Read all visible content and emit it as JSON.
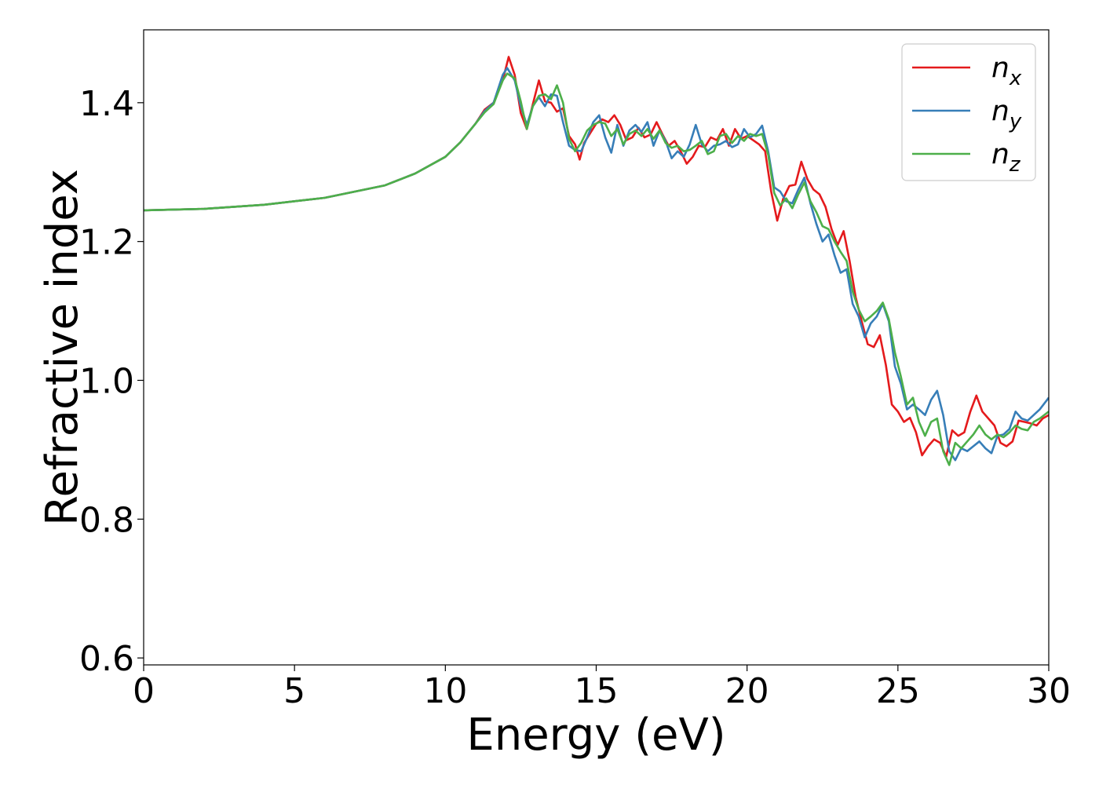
{
  "chart_data": {
    "type": "line",
    "title": "",
    "xlabel": "Energy (eV)",
    "ylabel": "Refractive index",
    "xlim": [
      0,
      30
    ],
    "ylim": [
      0.59,
      1.505
    ],
    "xticks": [
      0,
      5,
      10,
      15,
      20,
      25,
      30
    ],
    "xtick_labels": [
      "0",
      "5",
      "10",
      "15",
      "20",
      "25",
      "30"
    ],
    "yticks": [
      0.6,
      0.8,
      1.0,
      1.2,
      1.4
    ],
    "ytick_labels": [
      "0.6",
      "0.8",
      "1.0",
      "1.2",
      "1.4"
    ],
    "grid": false,
    "legend_position": "top-right",
    "series": [
      {
        "name_base": "n",
        "name_sub": "x",
        "color": "#e41a1c",
        "points": [
          [
            0,
            1.245
          ],
          [
            2,
            1.247
          ],
          [
            4,
            1.253
          ],
          [
            6,
            1.263
          ],
          [
            8,
            1.281
          ],
          [
            9,
            1.298
          ],
          [
            10,
            1.322
          ],
          [
            10.5,
            1.343
          ],
          [
            11,
            1.37
          ],
          [
            11.3,
            1.39
          ],
          [
            11.6,
            1.4
          ],
          [
            11.9,
            1.432
          ],
          [
            12.1,
            1.466
          ],
          [
            12.3,
            1.44
          ],
          [
            12.5,
            1.385
          ],
          [
            12.7,
            1.362
          ],
          [
            12.9,
            1.398
          ],
          [
            13.1,
            1.432
          ],
          [
            13.3,
            1.402
          ],
          [
            13.5,
            1.4
          ],
          [
            13.7,
            1.387
          ],
          [
            13.9,
            1.392
          ],
          [
            14.1,
            1.352
          ],
          [
            14.3,
            1.34
          ],
          [
            14.45,
            1.318
          ],
          [
            14.6,
            1.342
          ],
          [
            14.8,
            1.356
          ],
          [
            15.0,
            1.37
          ],
          [
            15.2,
            1.376
          ],
          [
            15.4,
            1.372
          ],
          [
            15.6,
            1.382
          ],
          [
            15.8,
            1.368
          ],
          [
            16.0,
            1.346
          ],
          [
            16.2,
            1.35
          ],
          [
            16.4,
            1.364
          ],
          [
            16.6,
            1.35
          ],
          [
            16.8,
            1.354
          ],
          [
            17.0,
            1.372
          ],
          [
            17.2,
            1.354
          ],
          [
            17.4,
            1.338
          ],
          [
            17.6,
            1.345
          ],
          [
            17.8,
            1.33
          ],
          [
            18.0,
            1.312
          ],
          [
            18.2,
            1.322
          ],
          [
            18.4,
            1.338
          ],
          [
            18.6,
            1.336
          ],
          [
            18.8,
            1.35
          ],
          [
            19.0,
            1.346
          ],
          [
            19.2,
            1.362
          ],
          [
            19.4,
            1.338
          ],
          [
            19.6,
            1.362
          ],
          [
            19.8,
            1.348
          ],
          [
            20.0,
            1.352
          ],
          [
            20.2,
            1.346
          ],
          [
            20.4,
            1.34
          ],
          [
            20.6,
            1.33
          ],
          [
            20.8,
            1.272
          ],
          [
            21.0,
            1.23
          ],
          [
            21.2,
            1.262
          ],
          [
            21.4,
            1.28
          ],
          [
            21.6,
            1.282
          ],
          [
            21.8,
            1.315
          ],
          [
            22.0,
            1.29
          ],
          [
            22.2,
            1.275
          ],
          [
            22.4,
            1.268
          ],
          [
            22.6,
            1.25
          ],
          [
            22.8,
            1.218
          ],
          [
            23.0,
            1.195
          ],
          [
            23.2,
            1.215
          ],
          [
            23.4,
            1.172
          ],
          [
            23.6,
            1.12
          ],
          [
            23.8,
            1.085
          ],
          [
            24.0,
            1.052
          ],
          [
            24.2,
            1.048
          ],
          [
            24.4,
            1.065
          ],
          [
            24.6,
            1.022
          ],
          [
            24.8,
            0.965
          ],
          [
            25.0,
            0.955
          ],
          [
            25.2,
            0.94
          ],
          [
            25.4,
            0.946
          ],
          [
            25.6,
            0.925
          ],
          [
            25.8,
            0.892
          ],
          [
            26.0,
            0.905
          ],
          [
            26.2,
            0.915
          ],
          [
            26.4,
            0.91
          ],
          [
            26.6,
            0.89
          ],
          [
            26.8,
            0.928
          ],
          [
            27.0,
            0.92
          ],
          [
            27.2,
            0.925
          ],
          [
            27.4,
            0.955
          ],
          [
            27.6,
            0.978
          ],
          [
            27.8,
            0.955
          ],
          [
            28.0,
            0.945
          ],
          [
            28.2,
            0.935
          ],
          [
            28.4,
            0.91
          ],
          [
            28.6,
            0.905
          ],
          [
            28.8,
            0.912
          ],
          [
            29.0,
            0.942
          ],
          [
            29.2,
            0.94
          ],
          [
            29.4,
            0.938
          ],
          [
            29.6,
            0.935
          ],
          [
            29.8,
            0.945
          ],
          [
            30.0,
            0.95
          ]
        ]
      },
      {
        "name_base": "n",
        "name_sub": "y",
        "color": "#377eb8",
        "points": [
          [
            0,
            1.245
          ],
          [
            2,
            1.247
          ],
          [
            4,
            1.253
          ],
          [
            6,
            1.263
          ],
          [
            8,
            1.281
          ],
          [
            9,
            1.298
          ],
          [
            10,
            1.322
          ],
          [
            10.5,
            1.343
          ],
          [
            11,
            1.37
          ],
          [
            11.3,
            1.388
          ],
          [
            11.6,
            1.4
          ],
          [
            11.9,
            1.44
          ],
          [
            12.05,
            1.45
          ],
          [
            12.3,
            1.432
          ],
          [
            12.5,
            1.395
          ],
          [
            12.7,
            1.368
          ],
          [
            12.9,
            1.395
          ],
          [
            13.1,
            1.408
          ],
          [
            13.3,
            1.395
          ],
          [
            13.5,
            1.412
          ],
          [
            13.7,
            1.41
          ],
          [
            13.9,
            1.372
          ],
          [
            14.1,
            1.338
          ],
          [
            14.3,
            1.332
          ],
          [
            14.5,
            1.33
          ],
          [
            14.7,
            1.35
          ],
          [
            14.9,
            1.372
          ],
          [
            15.1,
            1.382
          ],
          [
            15.3,
            1.35
          ],
          [
            15.5,
            1.328
          ],
          [
            15.7,
            1.368
          ],
          [
            15.9,
            1.338
          ],
          [
            16.1,
            1.36
          ],
          [
            16.3,
            1.368
          ],
          [
            16.5,
            1.358
          ],
          [
            16.7,
            1.372
          ],
          [
            16.9,
            1.338
          ],
          [
            17.1,
            1.36
          ],
          [
            17.3,
            1.345
          ],
          [
            17.5,
            1.32
          ],
          [
            17.7,
            1.33
          ],
          [
            17.9,
            1.322
          ],
          [
            18.1,
            1.34
          ],
          [
            18.3,
            1.368
          ],
          [
            18.5,
            1.34
          ],
          [
            18.7,
            1.33
          ],
          [
            18.9,
            1.338
          ],
          [
            19.1,
            1.34
          ],
          [
            19.3,
            1.345
          ],
          [
            19.5,
            1.336
          ],
          [
            19.7,
            1.34
          ],
          [
            19.9,
            1.362
          ],
          [
            20.1,
            1.35
          ],
          [
            20.3,
            1.355
          ],
          [
            20.5,
            1.367
          ],
          [
            20.7,
            1.33
          ],
          [
            20.9,
            1.278
          ],
          [
            21.1,
            1.272
          ],
          [
            21.3,
            1.258
          ],
          [
            21.5,
            1.255
          ],
          [
            21.7,
            1.275
          ],
          [
            21.9,
            1.292
          ],
          [
            22.1,
            1.255
          ],
          [
            22.3,
            1.225
          ],
          [
            22.5,
            1.2
          ],
          [
            22.7,
            1.21
          ],
          [
            22.9,
            1.18
          ],
          [
            23.1,
            1.155
          ],
          [
            23.3,
            1.16
          ],
          [
            23.5,
            1.11
          ],
          [
            23.7,
            1.092
          ],
          [
            23.9,
            1.062
          ],
          [
            24.1,
            1.082
          ],
          [
            24.3,
            1.092
          ],
          [
            24.5,
            1.11
          ],
          [
            24.7,
            1.085
          ],
          [
            24.9,
            1.02
          ],
          [
            25.1,
            0.995
          ],
          [
            25.3,
            0.958
          ],
          [
            25.5,
            0.965
          ],
          [
            25.7,
            0.958
          ],
          [
            25.9,
            0.95
          ],
          [
            26.1,
            0.972
          ],
          [
            26.3,
            0.985
          ],
          [
            26.5,
            0.95
          ],
          [
            26.7,
            0.898
          ],
          [
            26.9,
            0.885
          ],
          [
            27.1,
            0.902
          ],
          [
            27.3,
            0.898
          ],
          [
            27.5,
            0.905
          ],
          [
            27.7,
            0.912
          ],
          [
            27.9,
            0.902
          ],
          [
            28.1,
            0.895
          ],
          [
            28.3,
            0.92
          ],
          [
            28.5,
            0.922
          ],
          [
            28.7,
            0.93
          ],
          [
            28.9,
            0.955
          ],
          [
            29.1,
            0.945
          ],
          [
            29.3,
            0.942
          ],
          [
            29.5,
            0.95
          ],
          [
            29.7,
            0.958
          ],
          [
            30.0,
            0.975
          ]
        ]
      },
      {
        "name_base": "n",
        "name_sub": "z",
        "color": "#4daf4a",
        "points": [
          [
            0,
            1.245
          ],
          [
            2,
            1.247
          ],
          [
            4,
            1.253
          ],
          [
            6,
            1.263
          ],
          [
            8,
            1.281
          ],
          [
            9,
            1.298
          ],
          [
            10,
            1.322
          ],
          [
            10.5,
            1.343
          ],
          [
            11,
            1.37
          ],
          [
            11.3,
            1.386
          ],
          [
            11.6,
            1.398
          ],
          [
            11.9,
            1.432
          ],
          [
            12.05,
            1.442
          ],
          [
            12.3,
            1.435
          ],
          [
            12.5,
            1.402
          ],
          [
            12.7,
            1.362
          ],
          [
            12.9,
            1.395
          ],
          [
            13.1,
            1.41
          ],
          [
            13.3,
            1.412
          ],
          [
            13.5,
            1.405
          ],
          [
            13.7,
            1.425
          ],
          [
            13.9,
            1.4
          ],
          [
            14.1,
            1.348
          ],
          [
            14.3,
            1.33
          ],
          [
            14.5,
            1.342
          ],
          [
            14.7,
            1.36
          ],
          [
            14.9,
            1.368
          ],
          [
            15.1,
            1.372
          ],
          [
            15.3,
            1.37
          ],
          [
            15.5,
            1.352
          ],
          [
            15.7,
            1.362
          ],
          [
            15.9,
            1.34
          ],
          [
            16.1,
            1.355
          ],
          [
            16.3,
            1.36
          ],
          [
            16.5,
            1.352
          ],
          [
            16.7,
            1.362
          ],
          [
            16.9,
            1.348
          ],
          [
            17.1,
            1.36
          ],
          [
            17.3,
            1.342
          ],
          [
            17.5,
            1.335
          ],
          [
            17.7,
            1.338
          ],
          [
            17.9,
            1.33
          ],
          [
            18.1,
            1.332
          ],
          [
            18.3,
            1.338
          ],
          [
            18.5,
            1.345
          ],
          [
            18.7,
            1.326
          ],
          [
            18.9,
            1.33
          ],
          [
            19.1,
            1.352
          ],
          [
            19.3,
            1.355
          ],
          [
            19.5,
            1.342
          ],
          [
            19.7,
            1.352
          ],
          [
            19.9,
            1.345
          ],
          [
            20.1,
            1.355
          ],
          [
            20.3,
            1.352
          ],
          [
            20.5,
            1.355
          ],
          [
            20.7,
            1.325
          ],
          [
            20.9,
            1.27
          ],
          [
            21.1,
            1.252
          ],
          [
            21.3,
            1.262
          ],
          [
            21.5,
            1.248
          ],
          [
            21.7,
            1.268
          ],
          [
            21.9,
            1.285
          ],
          [
            22.1,
            1.258
          ],
          [
            22.3,
            1.242
          ],
          [
            22.5,
            1.222
          ],
          [
            22.7,
            1.218
          ],
          [
            22.9,
            1.2
          ],
          [
            23.1,
            1.185
          ],
          [
            23.3,
            1.172
          ],
          [
            23.5,
            1.128
          ],
          [
            23.7,
            1.102
          ],
          [
            23.9,
            1.085
          ],
          [
            24.1,
            1.092
          ],
          [
            24.3,
            1.1
          ],
          [
            24.5,
            1.112
          ],
          [
            24.7,
            1.088
          ],
          [
            24.9,
            1.04
          ],
          [
            25.1,
            1.005
          ],
          [
            25.3,
            0.965
          ],
          [
            25.5,
            0.975
          ],
          [
            25.7,
            0.94
          ],
          [
            25.9,
            0.92
          ],
          [
            26.1,
            0.94
          ],
          [
            26.3,
            0.945
          ],
          [
            26.5,
            0.898
          ],
          [
            26.7,
            0.878
          ],
          [
            26.9,
            0.91
          ],
          [
            27.1,
            0.902
          ],
          [
            27.3,
            0.912
          ],
          [
            27.5,
            0.922
          ],
          [
            27.7,
            0.935
          ],
          [
            27.9,
            0.922
          ],
          [
            28.1,
            0.915
          ],
          [
            28.3,
            0.922
          ],
          [
            28.5,
            0.918
          ],
          [
            28.7,
            0.925
          ],
          [
            28.9,
            0.935
          ],
          [
            29.1,
            0.93
          ],
          [
            29.3,
            0.928
          ],
          [
            29.5,
            0.94
          ],
          [
            29.7,
            0.945
          ],
          [
            30.0,
            0.955
          ]
        ]
      }
    ]
  }
}
